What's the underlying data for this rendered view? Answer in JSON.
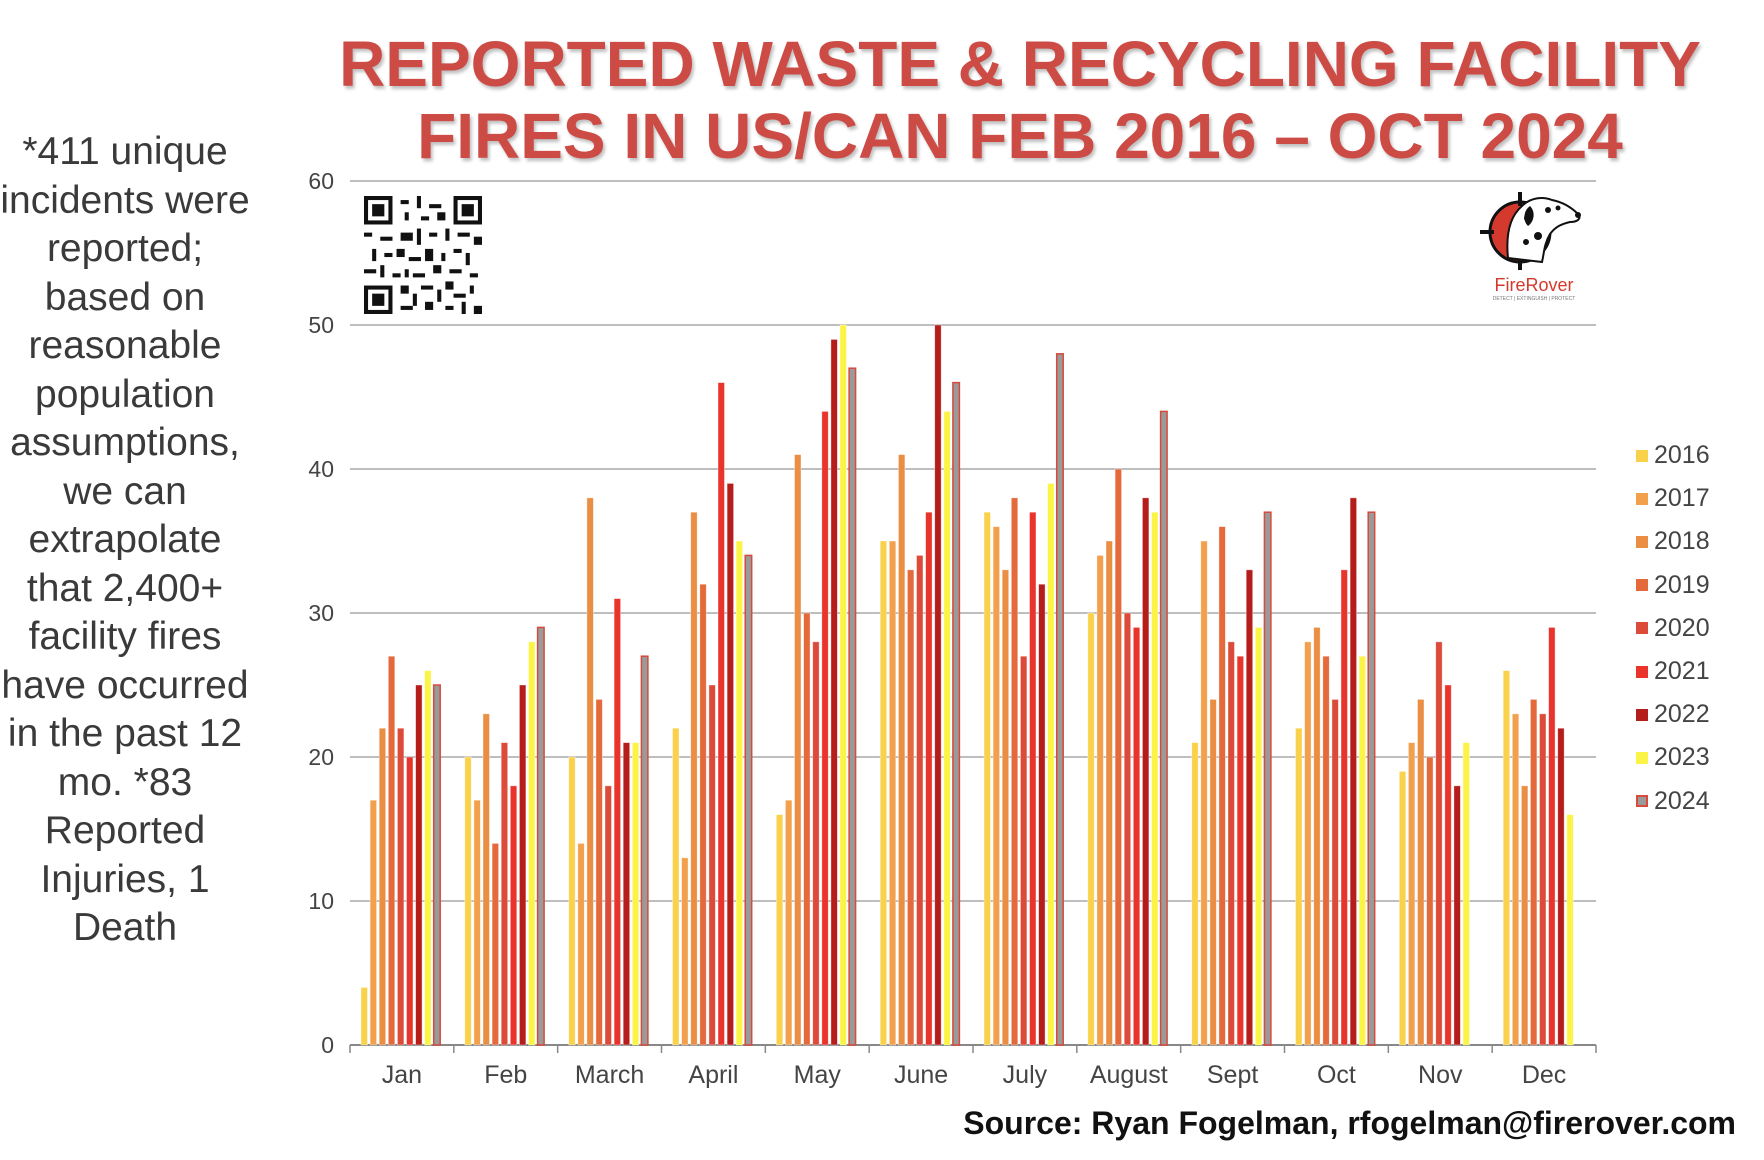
{
  "title": {
    "line1": "REPORTED WASTE & RECYCLING FACILITY",
    "line2": "FIRES IN US/CAN FEB 2016 – OCT 2024"
  },
  "side_note": "*411 unique incidents were reported; based on reasonable population assumptions, we can extrapolate that 2,400+ facility fires have occurred in the past 12 mo. *83 Reported Injuries, 1 Death",
  "source": "Source: Ryan Fogelman, rfogelman@firerover.com",
  "logo": {
    "text": "FireRover",
    "tagline": "DETECT | EXTINGUISH | PROTECT",
    "icon": "dalmatian-crosshair-icon"
  },
  "qr": {
    "icon": "qr-code-icon"
  },
  "colors": {
    "2016": "#f9d14b",
    "2017": "#f2a04c",
    "2018": "#ea8e44",
    "2019": "#e46a3c",
    "2020": "#dc4b3a",
    "2021": "#e9342c",
    "2022": "#b51d1b",
    "2023": "#fbf446",
    "2024": "#9a9a9a",
    "bar_outline": "#d84a3c",
    "title": "#cd4b45"
  },
  "chart_data": {
    "type": "bar",
    "categories": [
      "Jan",
      "Feb",
      "March",
      "April",
      "May",
      "June",
      "July",
      "August",
      "Sept",
      "Oct",
      "Nov",
      "Dec"
    ],
    "series": [
      {
        "name": "2016",
        "values": [
          4,
          20,
          20,
          22,
          16,
          35,
          37,
          30,
          21,
          22,
          19,
          26
        ]
      },
      {
        "name": "2017",
        "values": [
          17,
          17,
          14,
          13,
          17,
          35,
          36,
          34,
          35,
          28,
          21,
          23
        ]
      },
      {
        "name": "2018",
        "values": [
          22,
          23,
          38,
          37,
          41,
          41,
          33,
          35,
          24,
          29,
          24,
          18
        ]
      },
      {
        "name": "2019",
        "values": [
          27,
          14,
          24,
          32,
          30,
          33,
          38,
          40,
          36,
          27,
          20,
          24
        ]
      },
      {
        "name": "2020",
        "values": [
          22,
          21,
          18,
          25,
          28,
          34,
          27,
          30,
          28,
          24,
          28,
          23
        ]
      },
      {
        "name": "2021",
        "values": [
          20,
          18,
          31,
          46,
          44,
          37,
          37,
          29,
          27,
          33,
          25,
          29
        ]
      },
      {
        "name": "2022",
        "values": [
          25,
          25,
          21,
          39,
          49,
          50,
          32,
          38,
          33,
          38,
          18,
          22
        ]
      },
      {
        "name": "2023",
        "values": [
          26,
          28,
          21,
          35,
          50,
          44,
          39,
          37,
          29,
          27,
          21,
          16
        ]
      },
      {
        "name": "2024",
        "values": [
          25,
          29,
          27,
          34,
          47,
          46,
          48,
          44,
          37,
          37,
          null,
          null
        ]
      }
    ],
    "yticks": [
      0,
      10,
      20,
      30,
      40,
      50,
      60
    ],
    "ylim": [
      0,
      60
    ],
    "grid": true,
    "legend": "right"
  }
}
